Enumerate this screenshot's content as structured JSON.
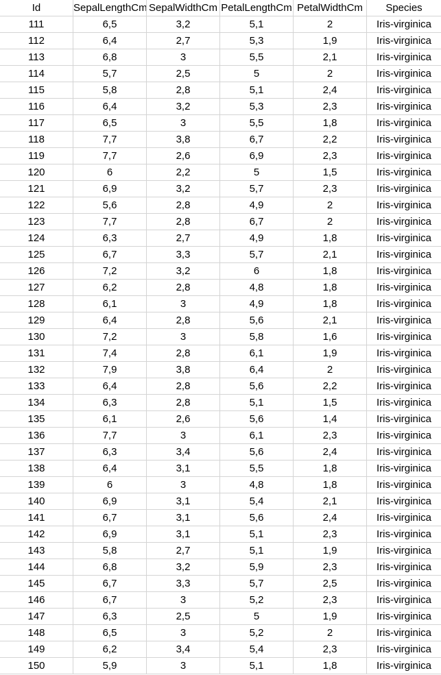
{
  "columns": [
    "Id",
    "SepalLengthCm",
    "SepalWidthCm",
    "PetalLengthCm",
    "PetalWidthCm",
    "Species"
  ],
  "rows": [
    [
      "111",
      "6,5",
      "3,2",
      "5,1",
      "2",
      "Iris-virginica"
    ],
    [
      "112",
      "6,4",
      "2,7",
      "5,3",
      "1,9",
      "Iris-virginica"
    ],
    [
      "113",
      "6,8",
      "3",
      "5,5",
      "2,1",
      "Iris-virginica"
    ],
    [
      "114",
      "5,7",
      "2,5",
      "5",
      "2",
      "Iris-virginica"
    ],
    [
      "115",
      "5,8",
      "2,8",
      "5,1",
      "2,4",
      "Iris-virginica"
    ],
    [
      "116",
      "6,4",
      "3,2",
      "5,3",
      "2,3",
      "Iris-virginica"
    ],
    [
      "117",
      "6,5",
      "3",
      "5,5",
      "1,8",
      "Iris-virginica"
    ],
    [
      "118",
      "7,7",
      "3,8",
      "6,7",
      "2,2",
      "Iris-virginica"
    ],
    [
      "119",
      "7,7",
      "2,6",
      "6,9",
      "2,3",
      "Iris-virginica"
    ],
    [
      "120",
      "6",
      "2,2",
      "5",
      "1,5",
      "Iris-virginica"
    ],
    [
      "121",
      "6,9",
      "3,2",
      "5,7",
      "2,3",
      "Iris-virginica"
    ],
    [
      "122",
      "5,6",
      "2,8",
      "4,9",
      "2",
      "Iris-virginica"
    ],
    [
      "123",
      "7,7",
      "2,8",
      "6,7",
      "2",
      "Iris-virginica"
    ],
    [
      "124",
      "6,3",
      "2,7",
      "4,9",
      "1,8",
      "Iris-virginica"
    ],
    [
      "125",
      "6,7",
      "3,3",
      "5,7",
      "2,1",
      "Iris-virginica"
    ],
    [
      "126",
      "7,2",
      "3,2",
      "6",
      "1,8",
      "Iris-virginica"
    ],
    [
      "127",
      "6,2",
      "2,8",
      "4,8",
      "1,8",
      "Iris-virginica"
    ],
    [
      "128",
      "6,1",
      "3",
      "4,9",
      "1,8",
      "Iris-virginica"
    ],
    [
      "129",
      "6,4",
      "2,8",
      "5,6",
      "2,1",
      "Iris-virginica"
    ],
    [
      "130",
      "7,2",
      "3",
      "5,8",
      "1,6",
      "Iris-virginica"
    ],
    [
      "131",
      "7,4",
      "2,8",
      "6,1",
      "1,9",
      "Iris-virginica"
    ],
    [
      "132",
      "7,9",
      "3,8",
      "6,4",
      "2",
      "Iris-virginica"
    ],
    [
      "133",
      "6,4",
      "2,8",
      "5,6",
      "2,2",
      "Iris-virginica"
    ],
    [
      "134",
      "6,3",
      "2,8",
      "5,1",
      "1,5",
      "Iris-virginica"
    ],
    [
      "135",
      "6,1",
      "2,6",
      "5,6",
      "1,4",
      "Iris-virginica"
    ],
    [
      "136",
      "7,7",
      "3",
      "6,1",
      "2,3",
      "Iris-virginica"
    ],
    [
      "137",
      "6,3",
      "3,4",
      "5,6",
      "2,4",
      "Iris-virginica"
    ],
    [
      "138",
      "6,4",
      "3,1",
      "5,5",
      "1,8",
      "Iris-virginica"
    ],
    [
      "139",
      "6",
      "3",
      "4,8",
      "1,8",
      "Iris-virginica"
    ],
    [
      "140",
      "6,9",
      "3,1",
      "5,4",
      "2,1",
      "Iris-virginica"
    ],
    [
      "141",
      "6,7",
      "3,1",
      "5,6",
      "2,4",
      "Iris-virginica"
    ],
    [
      "142",
      "6,9",
      "3,1",
      "5,1",
      "2,3",
      "Iris-virginica"
    ],
    [
      "143",
      "5,8",
      "2,7",
      "5,1",
      "1,9",
      "Iris-virginica"
    ],
    [
      "144",
      "6,8",
      "3,2",
      "5,9",
      "2,3",
      "Iris-virginica"
    ],
    [
      "145",
      "6,7",
      "3,3",
      "5,7",
      "2,5",
      "Iris-virginica"
    ],
    [
      "146",
      "6,7",
      "3",
      "5,2",
      "2,3",
      "Iris-virginica"
    ],
    [
      "147",
      "6,3",
      "2,5",
      "5",
      "1,9",
      "Iris-virginica"
    ],
    [
      "148",
      "6,5",
      "3",
      "5,2",
      "2",
      "Iris-virginica"
    ],
    [
      "149",
      "6,2",
      "3,4",
      "5,4",
      "2,3",
      "Iris-virginica"
    ],
    [
      "150",
      "5,9",
      "3",
      "5,1",
      "1,8",
      "Iris-virginica"
    ]
  ]
}
